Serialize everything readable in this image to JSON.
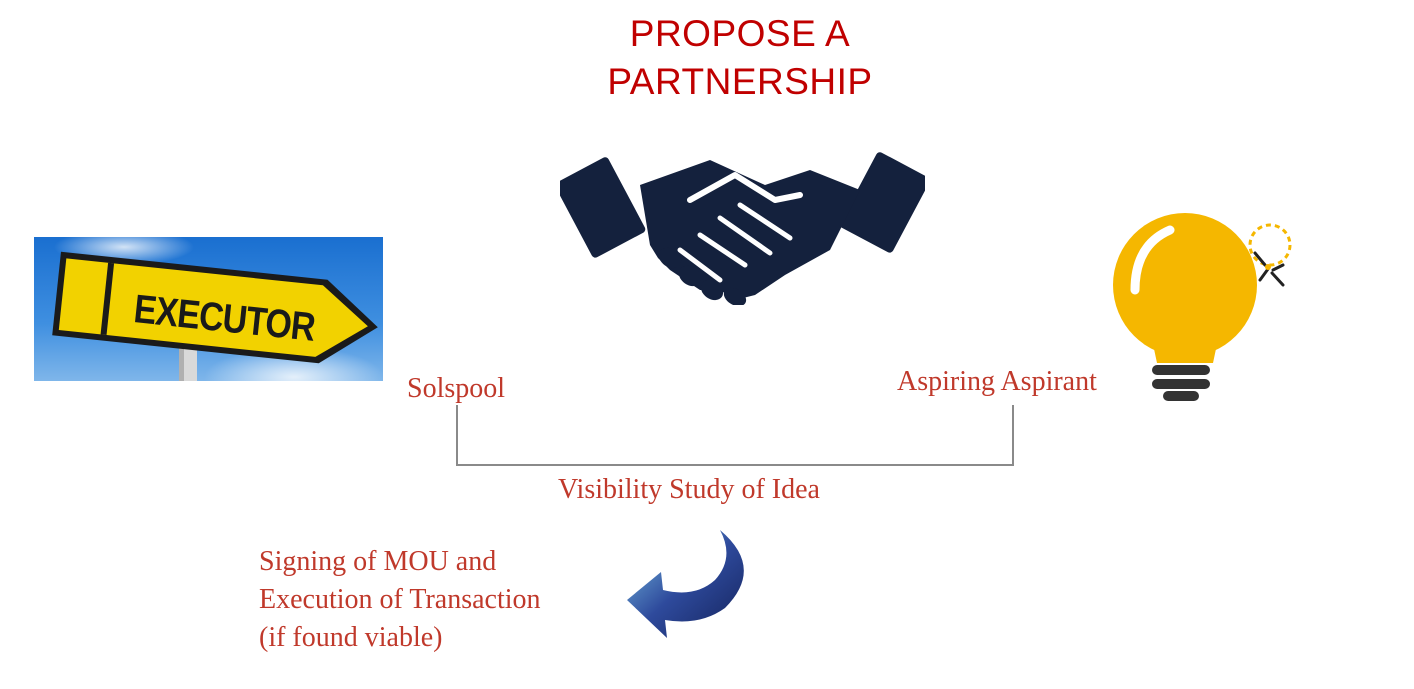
{
  "title": {
    "line1": "PROPOSE A",
    "line2": "PARTNERSHIP"
  },
  "executor_sign": {
    "text": "EXECUTOR"
  },
  "labels": {
    "solspool": "Solspool",
    "aspirant": "Aspiring Aspirant",
    "study": "Visibility Study of Idea",
    "mou_line1": "Signing of MOU and",
    "mou_line2": "Execution of Transaction",
    "mou_line3": "(if found viable)"
  },
  "icons": {
    "handshake": "handshake-icon",
    "bulb": "lightbulb-icon",
    "arrow": "curved-arrow-icon"
  },
  "colors": {
    "title": "#c00000",
    "label": "#c0392b",
    "handshake": "#14213d",
    "bulb": "#f5b700",
    "sign": "#f2d200",
    "sky": "#1a73d1",
    "arrow": "#1b2f6e"
  }
}
